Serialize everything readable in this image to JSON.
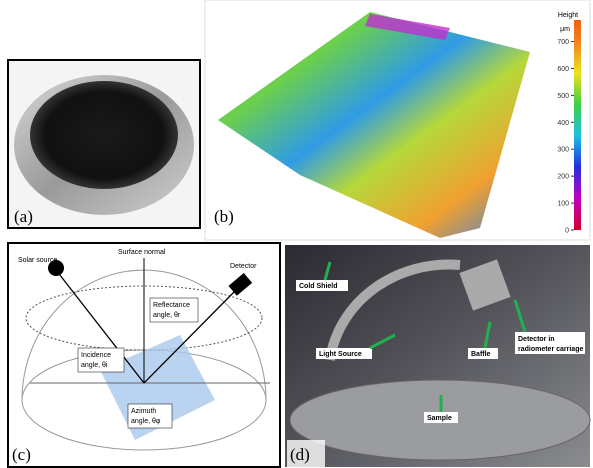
{
  "panels": [
    {
      "label": "(a)"
    },
    {
      "label": "(b)",
      "colorbar": {
        "title": "Height",
        "unit": "μm",
        "lim": [
          0,
          780
        ],
        "ticks": [
          0,
          100,
          200,
          300,
          400,
          500,
          600,
          700
        ]
      }
    },
    {
      "label": "(c)",
      "annotations": {
        "solar": "Solar source",
        "normal": "Surface normal",
        "detector": "Detector",
        "reflectance": [
          "Reflectance",
          "angle, θr"
        ],
        "incidence": [
          "Incidence",
          "angle, θi"
        ],
        "azimuth": [
          "Azimuth",
          "angle, θφ"
        ]
      }
    },
    {
      "label": "(d)",
      "annotations": {
        "cold": "Cold Shield",
        "light": "Light Source",
        "baffle": "Baffle",
        "detector": [
          "Detector in",
          "radiometer carriage"
        ],
        "sample": "Sample"
      }
    }
  ]
}
